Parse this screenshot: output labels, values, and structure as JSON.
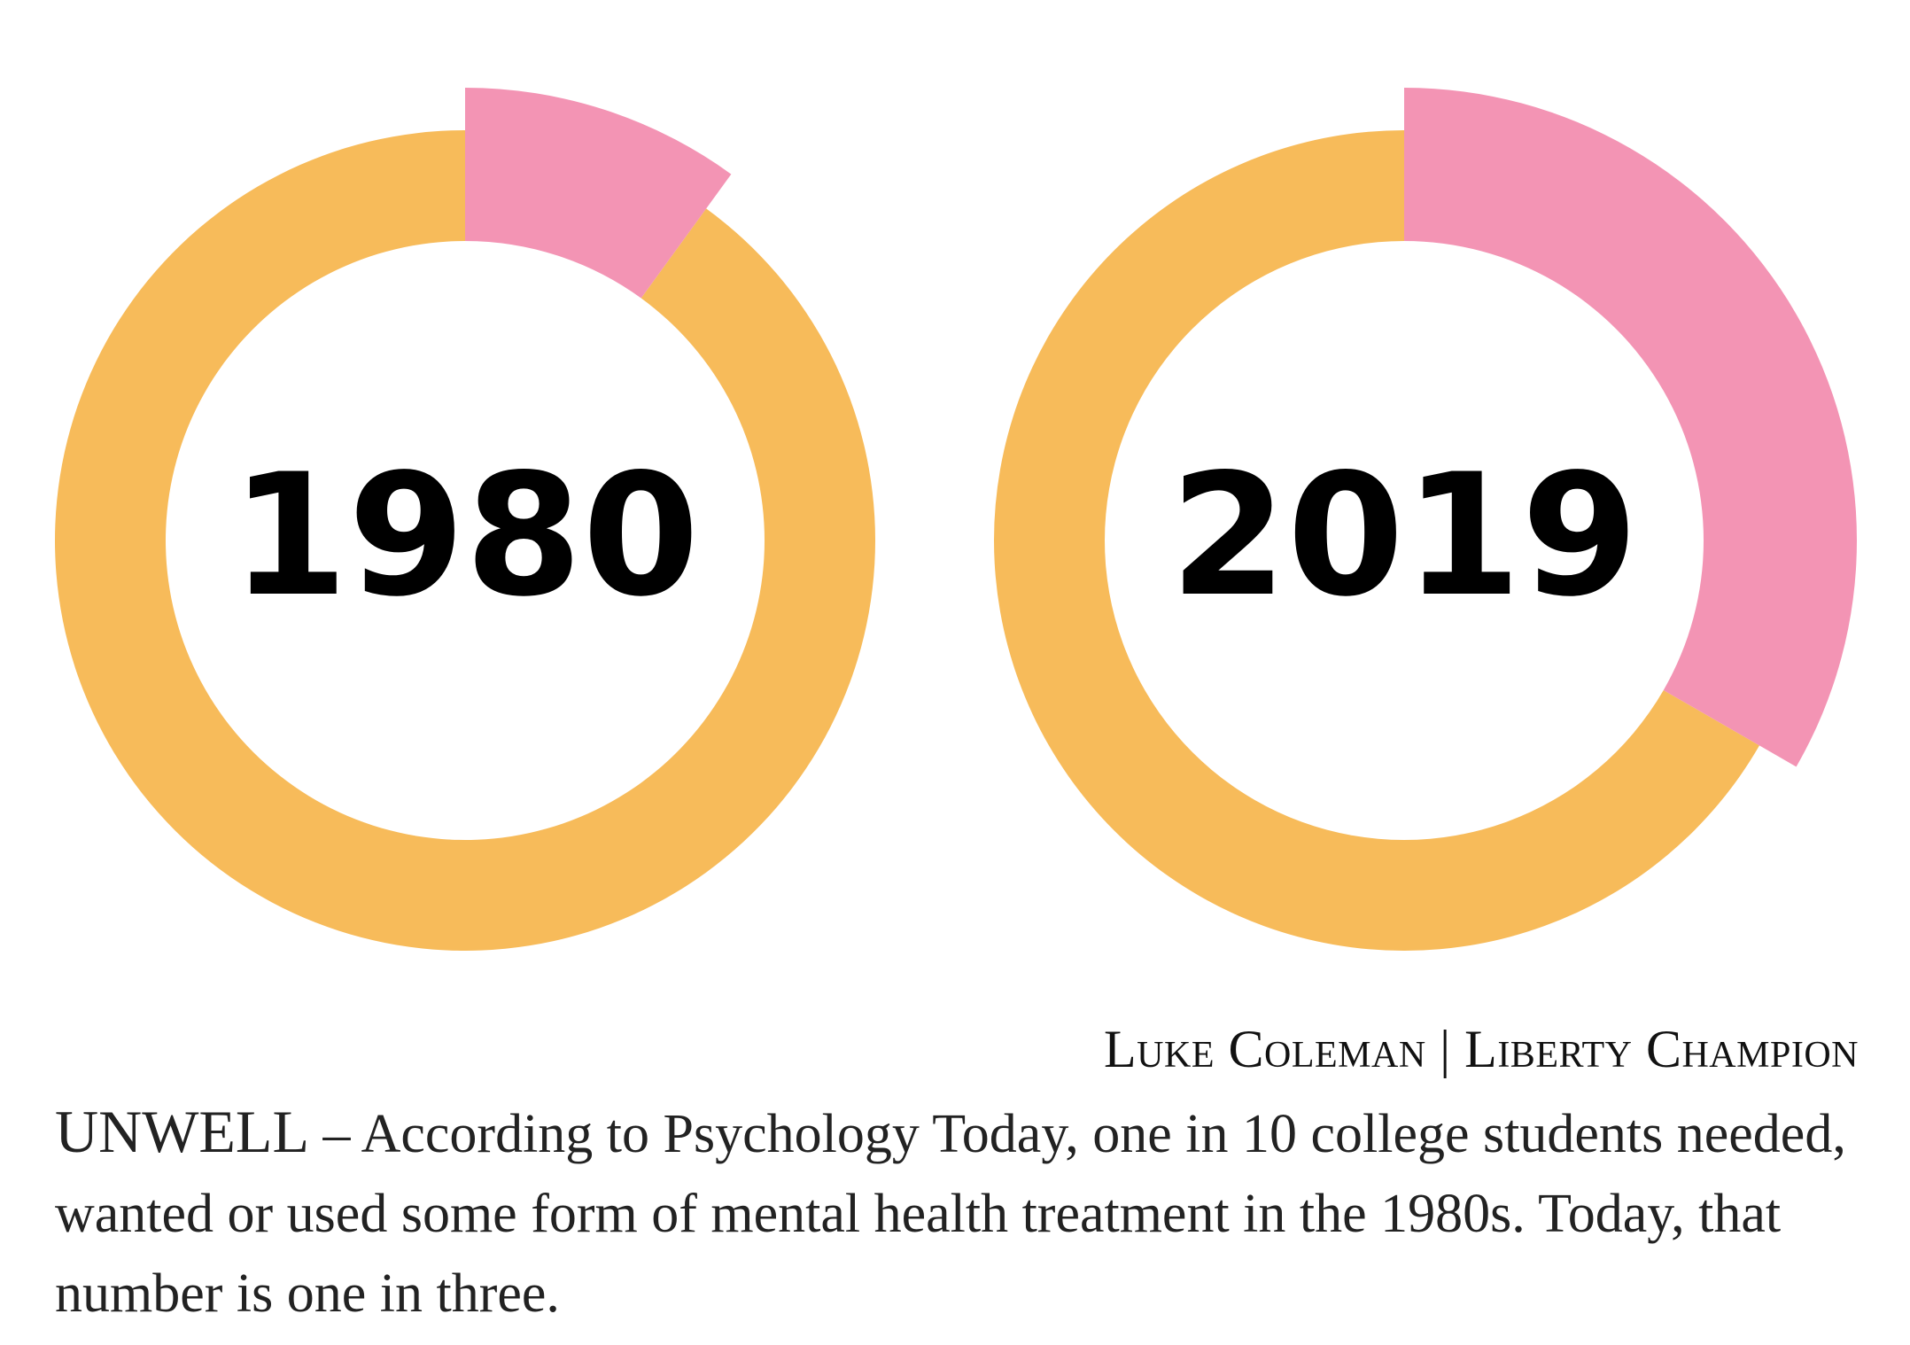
{
  "chart_data": [
    {
      "type": "pie",
      "style": "donut",
      "center_label": "1980",
      "slices": [
        {
          "share": 0.1,
          "color": "#F394B4",
          "emphasized": true
        },
        {
          "share": 0.9,
          "color": "#F7BB5A"
        }
      ]
    },
    {
      "type": "pie",
      "style": "donut",
      "center_label": "2019",
      "slices": [
        {
          "share": 0.3333,
          "color": "#F394B4",
          "emphasized": true
        },
        {
          "share": 0.6667,
          "color": "#F7BB5A"
        }
      ]
    }
  ],
  "credit": {
    "author": "Luke Coleman",
    "separator": "|",
    "publication": "Liberty Champion"
  },
  "caption": {
    "kicker": "UNWELL",
    "dash": "–",
    "body": "According to Psychology Today, one in 10 college students needed, wanted or used some form of mental health treatment in the 1980s. Today, that number is one in three."
  }
}
